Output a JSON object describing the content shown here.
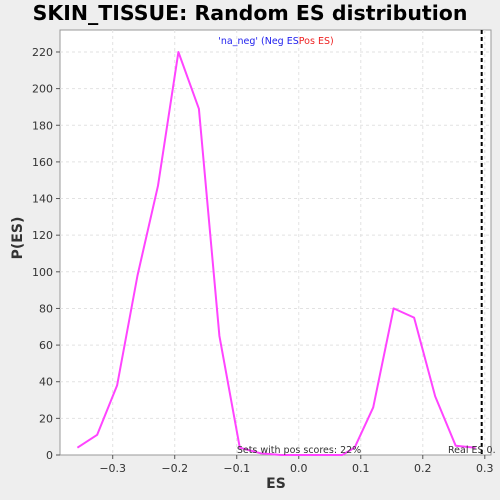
{
  "chart_data": {
    "type": "line",
    "title": "SKIN_TISSUE: Random ES distribution",
    "xlabel": "ES",
    "ylabel": "P(ES)",
    "xlim": [
      -0.385,
      0.31
    ],
    "ylim": [
      0,
      232
    ],
    "xticks": [
      -0.3,
      -0.2,
      -0.1,
      0.0,
      0.1,
      0.2,
      0.3
    ],
    "yticks": [
      0,
      20,
      40,
      60,
      80,
      100,
      120,
      140,
      160,
      180,
      200,
      220
    ],
    "grid": true,
    "series": [
      {
        "color": "#ff44ff",
        "x": [
          -0.357,
          -0.325,
          -0.293,
          -0.26,
          -0.227,
          -0.194,
          -0.161,
          -0.128,
          -0.095,
          -0.062,
          -0.029,
          0.004,
          0.037,
          0.07,
          0.09,
          0.12,
          0.153,
          0.186,
          0.22,
          0.253,
          0.285
        ],
        "y": [
          4,
          11,
          38,
          98,
          147,
          220,
          189,
          65,
          4,
          1,
          0,
          0,
          0,
          0,
          4,
          26,
          80,
          75,
          32,
          5,
          4
        ]
      }
    ],
    "real_es": 0.295,
    "legend": {
      "prefix": "'na_neg' (",
      "neg": "Neg ES",
      "neg_color": "#2222ee",
      "pos": "Pos ES",
      "pos_color": "#ee2222",
      "suffix": ")"
    },
    "annotations": {
      "pos_scores": "Sets with pos scores: 22%",
      "real_es": "Real ES 0."
    }
  }
}
